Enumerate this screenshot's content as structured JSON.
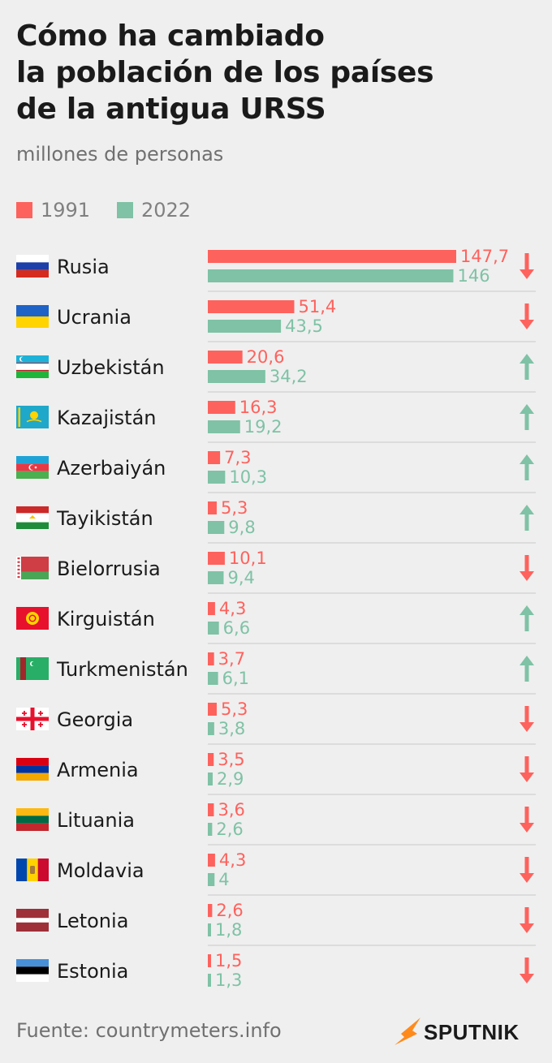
{
  "title_lines": [
    "Cómo ha cambiado",
    "la población de los países",
    "de la antigua URSS"
  ],
  "subtitle": "millones de personas",
  "legend": [
    {
      "label": "1991",
      "color": "#fe625d"
    },
    {
      "label": "2022",
      "color": "#7fc2a6"
    }
  ],
  "colors": {
    "series_1991": "#fe625d",
    "series_2022": "#7fc2a6",
    "divider": "#c8c8c8",
    "country_text": "#1a1a1a"
  },
  "footer": {
    "source": "Fuente: countrymeters.info",
    "brand": "SPUTNIK"
  },
  "chart_data": {
    "type": "bar",
    "orientation": "horizontal",
    "categories": [
      "Rusia",
      "Ucrania",
      "Uzbekistán",
      "Kazajistán",
      "Azerbaiyán",
      "Tayikistán",
      "Bielorrusia",
      "Kirguistán",
      "Turkmenistán",
      "Georgia",
      "Armenia",
      "Lituania",
      "Moldavia",
      "Letonia",
      "Estonia"
    ],
    "series": [
      {
        "name": "1991",
        "values": [
          147.7,
          51.4,
          20.6,
          16.3,
          7.3,
          5.3,
          10.1,
          4.3,
          3.7,
          5.3,
          3.5,
          3.6,
          4.3,
          2.6,
          1.5
        ],
        "labels": [
          "147,7",
          "51,4",
          "20,6",
          "16,3",
          "7,3",
          "5,3",
          "10,1",
          "4,3",
          "3,7",
          "5,3",
          "3,5",
          "3,6",
          "4,3",
          "2,6",
          "1,5"
        ]
      },
      {
        "name": "2022",
        "values": [
          146,
          43.5,
          34.2,
          19.2,
          10.3,
          9.8,
          9.4,
          6.6,
          6.1,
          3.8,
          2.9,
          2.6,
          4,
          1.8,
          1.3
        ],
        "labels": [
          "146",
          "43,5",
          "34,2",
          "19,2",
          "10,3",
          "9,8",
          "9,4",
          "6,6",
          "6,1",
          "3,8",
          "2,9",
          "2,6",
          "4",
          "1,8",
          "1,3"
        ]
      }
    ],
    "trend": [
      "down",
      "down",
      "up",
      "up",
      "up",
      "up",
      "down",
      "up",
      "up",
      "down",
      "down",
      "down",
      "down",
      "down",
      "down"
    ],
    "flags": [
      "russia-flag",
      "ukraine-flag",
      "uzbekistan-flag",
      "kazakhstan-flag",
      "azerbaijan-flag",
      "tajikistan-flag",
      "belarus-flag",
      "kyrgyzstan-flag",
      "turkmenistan-flag",
      "georgia-flag",
      "armenia-flag",
      "lithuania-flag",
      "moldova-flag",
      "latvia-flag",
      "estonia-flag"
    ],
    "arrow_colors": {
      "up": "#7fc2a6",
      "down": "#fe625d"
    }
  }
}
